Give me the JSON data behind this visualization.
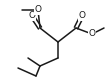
{
  "bg_color": "#ffffff",
  "line_color": "#1a1a1a",
  "lw": 1.1,
  "figsize": [
    1.12,
    0.78
  ],
  "dpi": 100,
  "xlim": [
    0,
    112
  ],
  "ylim": [
    0,
    78
  ]
}
